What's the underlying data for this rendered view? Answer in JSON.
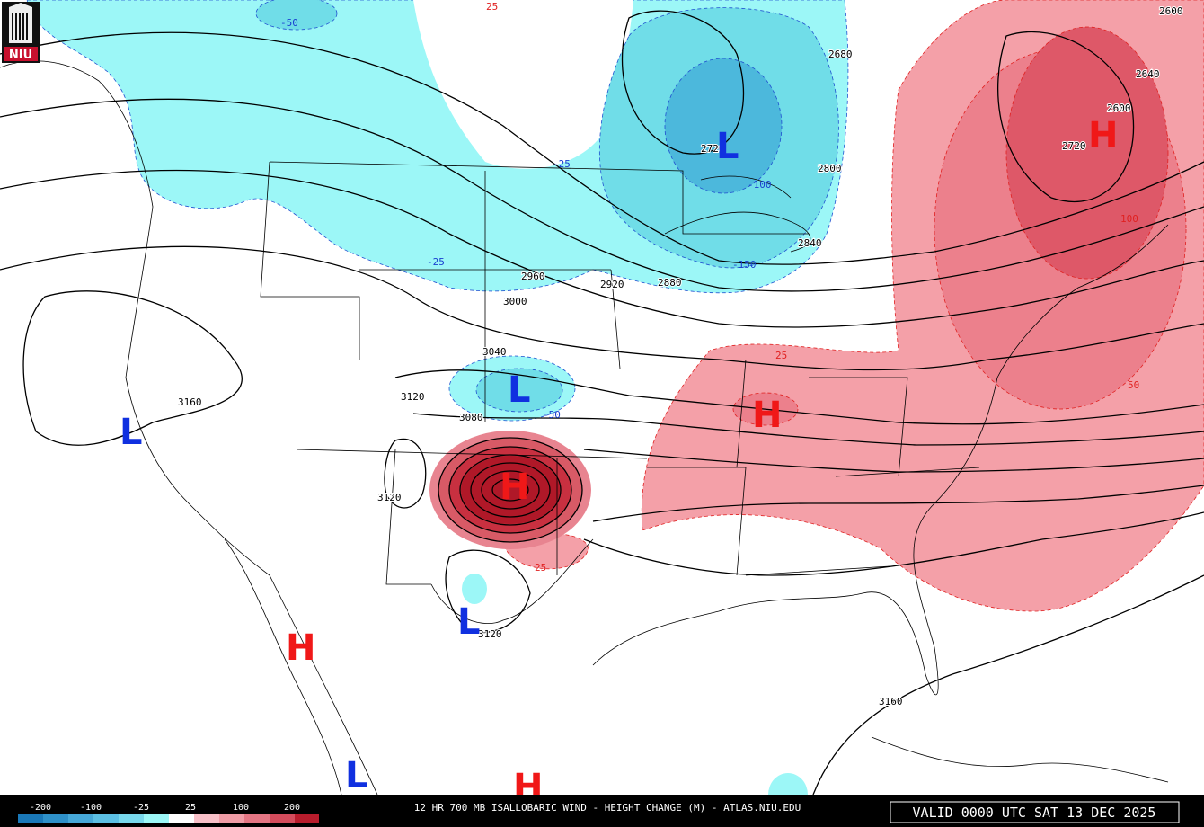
{
  "logo": "NIU",
  "map": {
    "highs_lows": [
      "L",
      "L",
      "L",
      "L",
      "L",
      "H",
      "H",
      "H",
      "H",
      "H"
    ],
    "contour_labels": [
      "2720",
      "2800",
      "2840",
      "2880",
      "2920",
      "2960",
      "3000",
      "3040",
      "3120",
      "3080",
      "3160",
      "3120",
      "3120",
      "3160",
      "2680",
      "2600",
      "2640",
      "2600",
      "2720"
    ],
    "change_labels": [
      "-50",
      "-25",
      "-100",
      "-150",
      "-25",
      "-50",
      "25",
      "25",
      "50",
      "100",
      "25"
    ]
  },
  "legend": {
    "labels": [
      "-200",
      "-100",
      "-25",
      "25",
      "100",
      "200"
    ]
  },
  "footer": {
    "title": "12 HR 700 MB ISALLOBARIC WIND - HEIGHT CHANGE (M) - ATLAS.NIU.EDU",
    "valid": "VALID 0000 UTC SAT 13 DEC 2025"
  }
}
